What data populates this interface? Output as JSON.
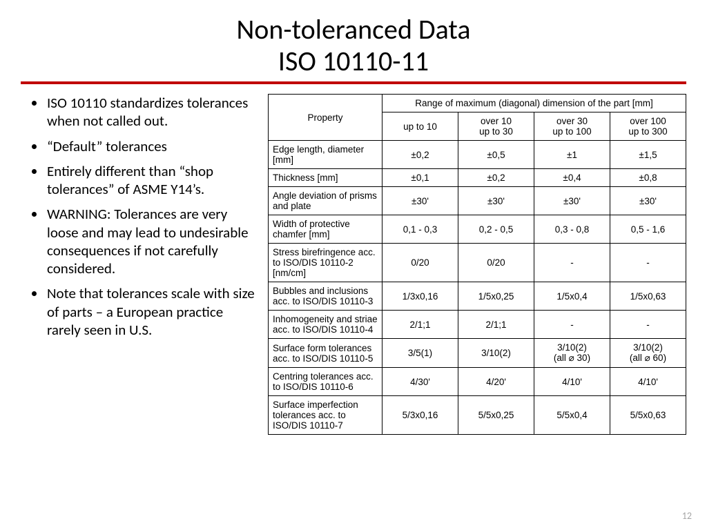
{
  "title": {
    "line1": "Non-toleranced Data",
    "line2": "ISO 10110-11",
    "fontsize": 40,
    "color": "#000000"
  },
  "rule_color": "#c00000",
  "bullets": [
    "ISO 10110 standardizes tolerances when not called out.",
    "“Default” tolerances",
    "Entirely different than “shop tolerances” of ASME Y14’s.",
    "WARNING: Tolerances are very loose and may lead to undesirable consequences if not carefully considered.",
    "Note that tolerances scale with size of parts – a European practice rarely seen in U.S."
  ],
  "bullet_fontsize": 21,
  "table": {
    "type": "table",
    "font_family": "Arial",
    "header_fontsize": 13.5,
    "cell_fontsize": 13.5,
    "border_color": "#000000",
    "background_color": "#ffffff",
    "super_header": "Range of maximum (diagonal) dimension of the part [mm]",
    "property_header": "Property",
    "range_headers": [
      "up to 10",
      "over 10\nup to 30",
      "over 30\nup to 100",
      "over 100\nup to 300"
    ],
    "rows": [
      {
        "property": "Edge length, diameter [mm]",
        "values": [
          "±0,2",
          "±0,5",
          "±1",
          "±1,5"
        ]
      },
      {
        "property": "Thickness [mm]",
        "values": [
          "±0,1",
          "±0,2",
          "±0,4",
          "±0,8"
        ]
      },
      {
        "property": "Angle deviation of prisms and plate",
        "values": [
          "±30'",
          "±30'",
          "±30'",
          "±30'"
        ]
      },
      {
        "property": "Width of protective chamfer [mm]",
        "values": [
          "0,1  -  0,3",
          "0,2  -  0,5",
          "0,3  -  0,8",
          "0,5  -  1,6"
        ]
      },
      {
        "property": "Stress birefringence acc. to ISO/DIS 10110-2 [nm/cm]",
        "values": [
          "0/20",
          "0/20",
          "-",
          "-"
        ]
      },
      {
        "property": "Bubbles and inclusions acc. to ISO/DIS 10110-3",
        "values": [
          "1/3x0,16",
          "1/5x0,25",
          "1/5x0,4",
          "1/5x0,63"
        ]
      },
      {
        "property": "Inhomogeneity and striae acc. to ISO/DIS 10110-4",
        "values": [
          "2/1;1",
          "2/1;1",
          "-",
          "-"
        ]
      },
      {
        "property": "Surface form tolerances acc. to ISO/DIS 10110-5",
        "values": [
          "3/5(1)",
          "3/10(2)",
          "3/10(2)\n(all ⌀ 30)",
          "3/10(2)\n(all ⌀ 60)"
        ]
      },
      {
        "property": "Centring tolerances acc. to ISO/DIS 10110-6",
        "values": [
          "4/30'",
          "4/20'",
          "4/10'",
          "4/10'"
        ]
      },
      {
        "property": "Surface imperfection tolerances acc. to ISO/DIS 10110-7",
        "values": [
          "5/3x0,16",
          "5/5x0,25",
          "5/5x0,4",
          "5/5x0,63"
        ]
      }
    ]
  },
  "page_number": "12",
  "page_number_color": "#a6a6a6"
}
